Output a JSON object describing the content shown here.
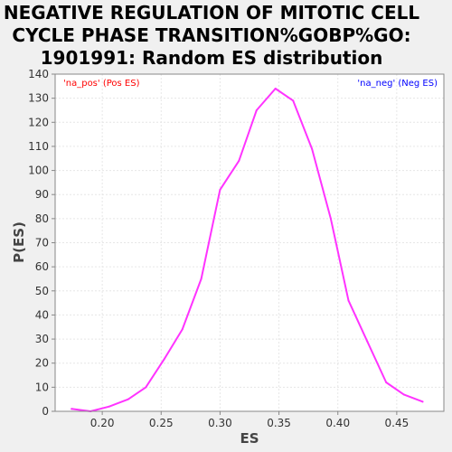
{
  "chart_data": {
    "type": "line",
    "title_lines": [
      "NEGATIVE REGULATION OF MITOTIC CELL",
      "CYCLE PHASE TRANSITION%GOBP%GO:",
      "1901991: Random ES distribution"
    ],
    "xlabel": "ES",
    "ylabel": "P(ES)",
    "xlim": [
      0.16,
      0.49
    ],
    "ylim": [
      0,
      140
    ],
    "xticks": [
      "0.20",
      "0.25",
      "0.30",
      "0.35",
      "0.40",
      "0.45"
    ],
    "yticks": [
      "0",
      "10",
      "20",
      "30",
      "40",
      "50",
      "60",
      "70",
      "80",
      "90",
      "100",
      "110",
      "120",
      "130",
      "140"
    ],
    "grid": true,
    "corner_label_left": "'na_pos' (Pos ES)",
    "corner_label_right": "'na_neg' (Neg ES)",
    "series": [
      {
        "color": "#ff33ff",
        "x": [
          0.174,
          0.19,
          0.206,
          0.222,
          0.237,
          0.253,
          0.268,
          0.284,
          0.3,
          0.316,
          0.331,
          0.347,
          0.362,
          0.378,
          0.394,
          0.409,
          0.425,
          0.441,
          0.456,
          0.472
        ],
        "y": [
          1,
          0,
          2,
          5,
          10,
          22,
          34,
          55,
          92,
          104,
          125,
          134,
          129,
          109,
          80,
          46,
          29,
          12,
          7,
          4
        ]
      }
    ]
  },
  "colors": {
    "background": "#f0f0f0",
    "plot_background": "#ffffff",
    "grid": "#e6e6e6",
    "corner_label_left": "#ff0000",
    "corner_label_right": "#0000ff",
    "line": "#ff33ff"
  }
}
